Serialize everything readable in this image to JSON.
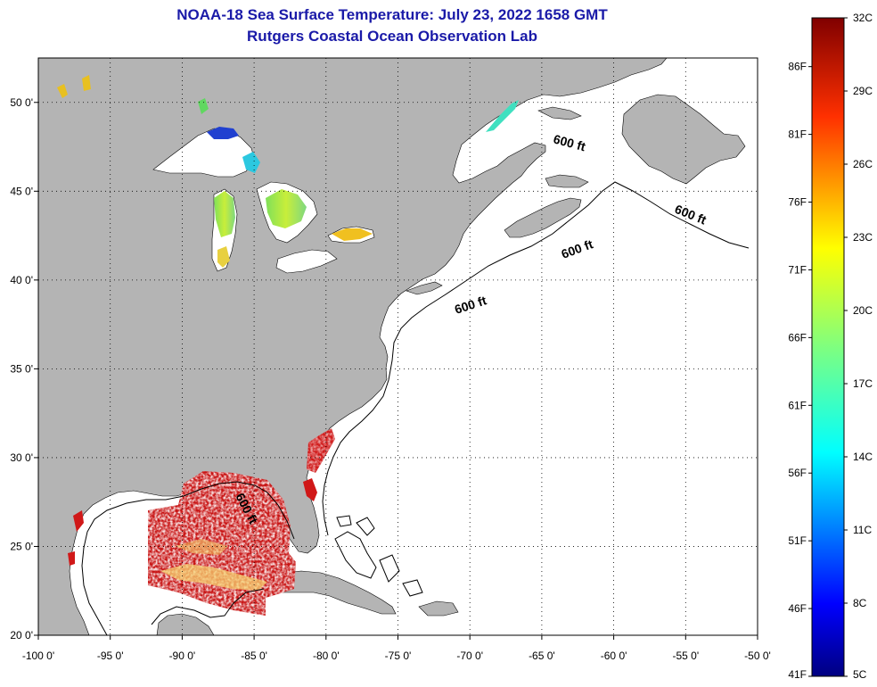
{
  "title": {
    "line1": "NOAA-18 Sea Surface Temperature:  July 23, 2022 1658 GMT",
    "line2": "Rutgers Coastal Ocean Observation Lab"
  },
  "map": {
    "lon_range": [
      -100,
      -50
    ],
    "lat_range": [
      20,
      52.5
    ],
    "lon_ticks": [
      {
        "value": -100,
        "label": "-100 0'"
      },
      {
        "value": -95,
        "label": "-95 0'"
      },
      {
        "value": -90,
        "label": "-90 0'"
      },
      {
        "value": -85,
        "label": "-85 0'"
      },
      {
        "value": -80,
        "label": "-80 0'"
      },
      {
        "value": -75,
        "label": "-75 0'"
      },
      {
        "value": -70,
        "label": "-70 0'"
      },
      {
        "value": -65,
        "label": "-65 0'"
      },
      {
        "value": -60,
        "label": "-60 0'"
      },
      {
        "value": -55,
        "label": "-55 0'"
      },
      {
        "value": -50,
        "label": "-50 0'"
      }
    ],
    "lat_ticks": [
      {
        "value": 20,
        "label": "20 0'"
      },
      {
        "value": 25,
        "label": "25 0'"
      },
      {
        "value": 30,
        "label": "30 0'"
      },
      {
        "value": 35,
        "label": "35 0'"
      },
      {
        "value": 40,
        "label": "40 0'"
      },
      {
        "value": 45,
        "label": "45 0'"
      },
      {
        "value": 50,
        "label": "50 0'"
      }
    ],
    "isobath_labels": [
      "600 ft",
      "600 ft",
      "600 ft",
      "600 ft",
      "600 ft"
    ],
    "colors": {
      "land": "#b4b4b4",
      "no_data": "#ffffff",
      "grid": "#000000",
      "sst_warm": "#c81414"
    }
  },
  "colorbar": {
    "c_labels": [
      "32C",
      "29C",
      "26C",
      "23C",
      "20C",
      "17C",
      "14C",
      "11C",
      "8C",
      "5C"
    ],
    "f_labels": [
      "86F",
      "81F",
      "76F",
      "71F",
      "66F",
      "61F",
      "56F",
      "51F",
      "46F",
      "41F"
    ],
    "c_values": [
      32,
      29,
      26,
      23,
      20,
      17,
      14,
      11,
      8,
      5
    ],
    "f_values": [
      86,
      81,
      76,
      71,
      66,
      61,
      56,
      51,
      46,
      41
    ],
    "c_min": 5,
    "c_max": 32
  }
}
